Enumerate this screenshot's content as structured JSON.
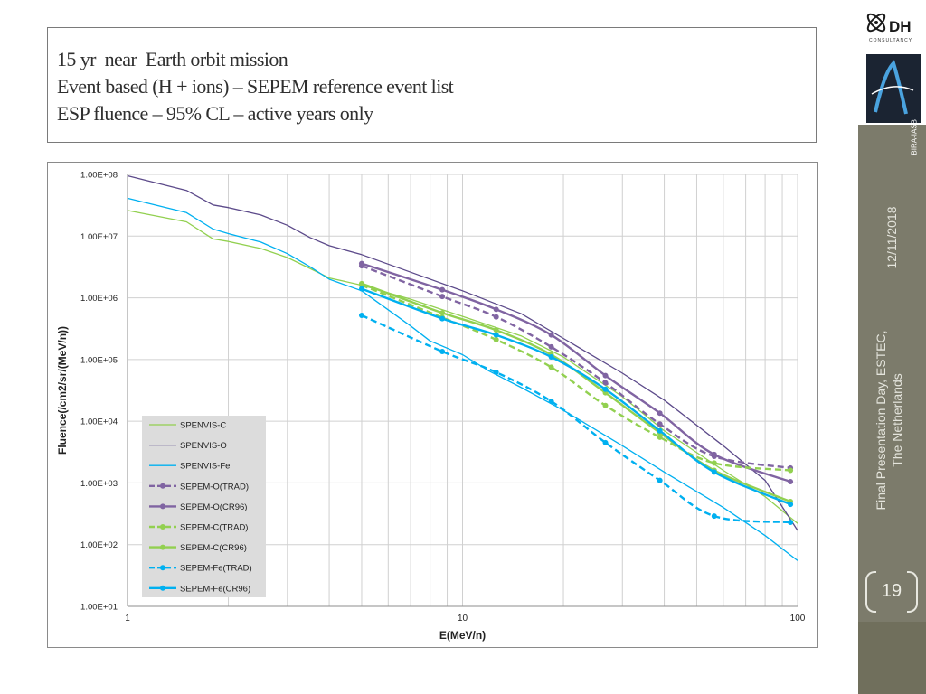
{
  "slide": {
    "title_lines": [
      "15 yr  near  Earth orbit mission",
      "Event based (H + ions) – SEPEM reference event list",
      "ESP fluence – 95% CL – active years only"
    ],
    "date": "12/11/2018",
    "footer_line1": "Final Presentation Day, ESTEC,",
    "footer_line2": "The Netherlands",
    "page_number": "19",
    "logo_dh_text": "DH",
    "logo_dh_sub": "CONSULTANCY",
    "logo_bira_text": "BIRA-IASB"
  },
  "chart_data": {
    "type": "line",
    "xlabel": "E(MeV/n)",
    "ylabel": "Fluence(/cm2/sr/(MeV/n))",
    "xscale": "log",
    "yscale": "log",
    "xlim": [
      1,
      100
    ],
    "ylim": [
      10,
      100000000
    ],
    "xticks": [
      1,
      10,
      100
    ],
    "xtick_labels": [
      "1",
      "10",
      "100"
    ],
    "yticks": [
      10,
      100,
      1000,
      10000,
      100000,
      1000000,
      10000000,
      100000000
    ],
    "ytick_labels": [
      "1.00E+01",
      "1.00E+02",
      "1.00E+03",
      "1.00E+04",
      "1.00E+05",
      "1.00E+06",
      "1.00E+07",
      "1.00E+08"
    ],
    "grid": true,
    "legend_position": "lower-left",
    "series": [
      {
        "name": "SPENVIS-C",
        "color": "#92d050",
        "dash": false,
        "markers": false,
        "width": 1.3,
        "x": [
          1,
          1.5,
          1.8,
          2,
          2.5,
          3,
          3.5,
          4,
          5,
          7,
          10,
          15,
          20,
          30,
          40,
          60,
          80,
          100
        ],
        "y": [
          26000000.0,
          17000000.0,
          9000000.0,
          8200000.0,
          6300000.0,
          4500000.0,
          3000000.0,
          2100000.0,
          1600000.0,
          950000.0,
          500000.0,
          240000.0,
          110000.0,
          25000.0,
          7000.0,
          1600.0,
          600,
          220
        ]
      },
      {
        "name": "SPENVIS-O",
        "color": "#5c4a8a",
        "dash": false,
        "markers": false,
        "width": 1.3,
        "x": [
          1,
          1.5,
          1.8,
          2,
          2.5,
          3,
          3.5,
          4,
          5,
          7,
          10,
          15,
          20,
          30,
          40,
          60,
          80,
          100
        ],
        "y": [
          95000000.0,
          55000000.0,
          32000000.0,
          29000000.0,
          22000000.0,
          15000000.0,
          9500000.0,
          7000000.0,
          5000000.0,
          2600000.0,
          1300000.0,
          550000.0,
          220000.0,
          60000.0,
          22000.0,
          4000.0,
          1100.0,
          170
        ]
      },
      {
        "name": "SPENVIS-Fe",
        "color": "#00b0f0",
        "dash": false,
        "markers": false,
        "width": 1.3,
        "x": [
          1,
          1.5,
          1.8,
          2,
          2.5,
          3,
          3.5,
          4,
          5,
          7,
          8,
          10,
          12,
          15,
          20,
          30,
          40,
          60,
          80,
          100
        ],
        "y": [
          41000000.0,
          24000000.0,
          13000000.0,
          11000000.0,
          8000000.0,
          5200000.0,
          3200000.0,
          2000000.0,
          1300000.0,
          350000.0,
          200000.0,
          120000.0,
          65000.0,
          35000.0,
          15000.0,
          4000.0,
          1500.0,
          400,
          140,
          55
        ]
      },
      {
        "name": "SEPEM-O(TRAD)",
        "color": "#8064a2",
        "dash": true,
        "markers": true,
        "width": 2.4,
        "x": [
          5,
          8.7,
          12.6,
          18.4,
          26.7,
          38.8,
          56.4,
          95.2
        ],
        "y": [
          3300000.0,
          1050000.0,
          490000.0,
          160000.0,
          42000.0,
          9000.0,
          2700.0,
          1750.0
        ]
      },
      {
        "name": "SEPEM-O(CR96)",
        "color": "#8064a2",
        "dash": false,
        "markers": true,
        "width": 2.4,
        "x": [
          5,
          8.7,
          12.6,
          18.4,
          26.7,
          38.8,
          56.4,
          95.2
        ],
        "y": [
          3600000.0,
          1350000.0,
          650000.0,
          250000.0,
          55000.0,
          13500.0,
          2900.0,
          1050.0
        ]
      },
      {
        "name": "SEPEM-C(TRAD)",
        "color": "#92d050",
        "dash": true,
        "markers": true,
        "width": 2.4,
        "x": [
          5,
          8.7,
          12.6,
          18.4,
          26.7,
          38.8,
          56.4,
          95.2
        ],
        "y": [
          1600000.0,
          480000.0,
          210000.0,
          75000.0,
          18000.0,
          5500.0,
          2100.0,
          1600.0
        ]
      },
      {
        "name": "SEPEM-C(CR96)",
        "color": "#92d050",
        "dash": false,
        "markers": true,
        "width": 2.4,
        "x": [
          5,
          8.7,
          12.6,
          18.4,
          26.7,
          38.8,
          56.4,
          95.2
        ],
        "y": [
          1700000.0,
          570000.0,
          300000.0,
          120000.0,
          29000.0,
          6500.0,
          1600.0,
          500
        ]
      },
      {
        "name": "SEPEM-Fe(TRAD)",
        "color": "#00b0f0",
        "dash": true,
        "markers": true,
        "width": 2.4,
        "x": [
          5,
          8.7,
          12.6,
          18.4,
          26.7,
          38.8,
          56.4,
          95.2
        ],
        "y": [
          520000.0,
          135000.0,
          62000.0,
          21000.0,
          4500.0,
          1100.0,
          290,
          230
        ]
      },
      {
        "name": "SEPEM-Fe(CR96)",
        "color": "#00b0f0",
        "dash": false,
        "markers": true,
        "width": 2.4,
        "x": [
          5,
          8.7,
          12.6,
          18.4,
          26.7,
          38.8,
          56.4,
          95.2
        ],
        "y": [
          1400000.0,
          460000.0,
          250000.0,
          110000.0,
          33000.0,
          7000.0,
          1500.0,
          450
        ]
      }
    ]
  }
}
